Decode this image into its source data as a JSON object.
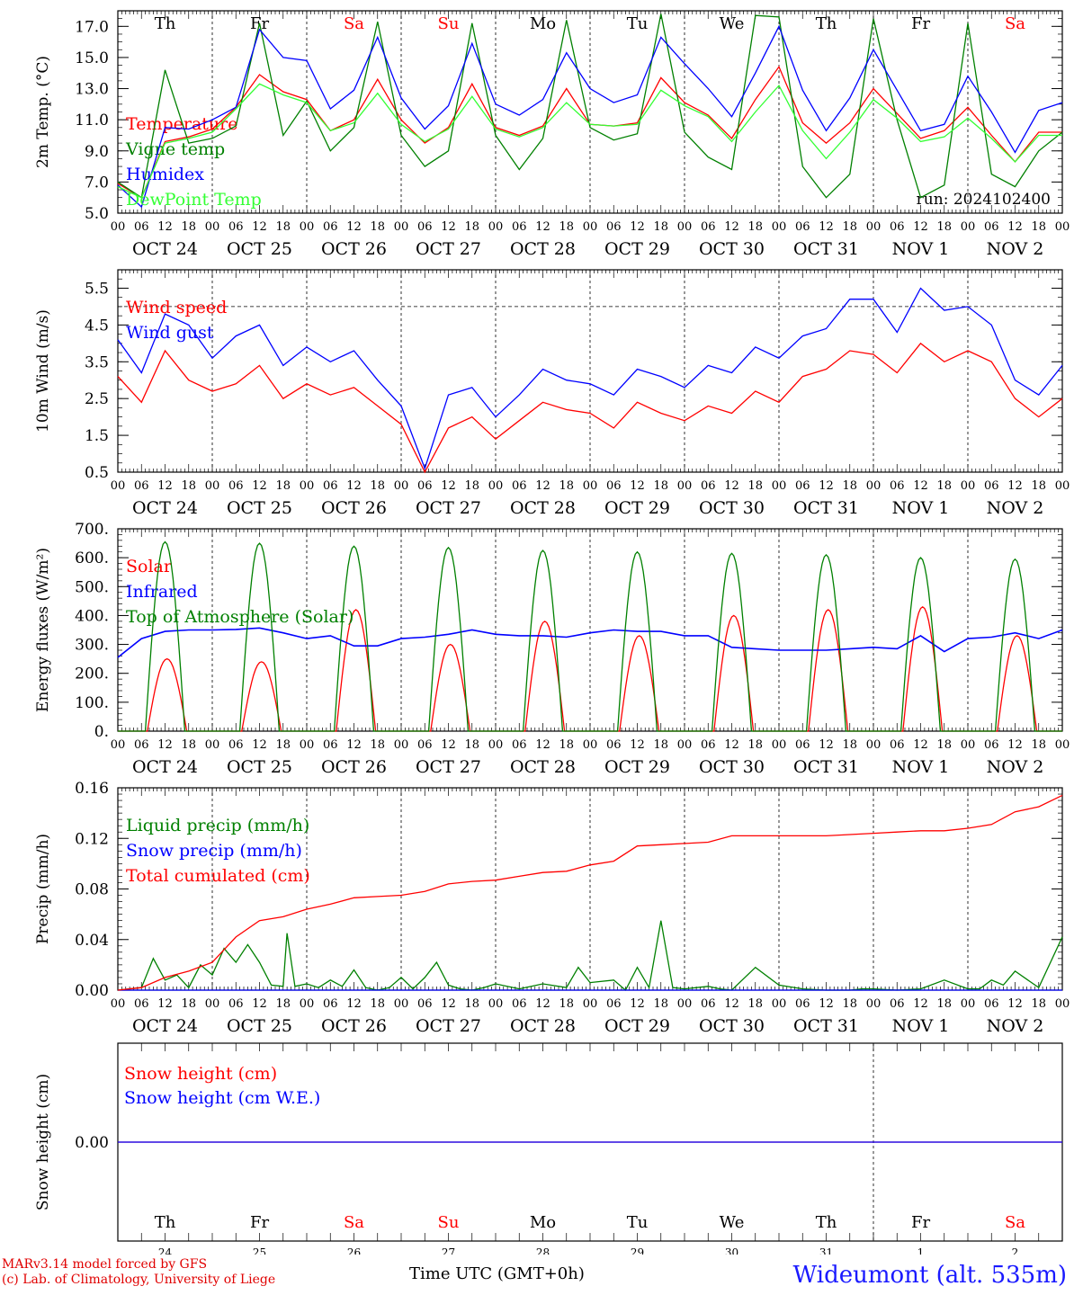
{
  "chart_data": [
    {
      "type": "line",
      "ylabel": "2m Temp. (°C)",
      "ylim": [
        5.0,
        18.0
      ],
      "yticks": [
        "5.0",
        "7.0",
        "9.0",
        "11.0",
        "13.0",
        "15.0",
        "17.0"
      ],
      "x_unit": "hours since OCT 24 00 UTC",
      "day_labels": [
        "Th",
        "Fr",
        "Sa",
        "Su",
        "Mo",
        "Tu",
        "We",
        "Th",
        "Fr",
        "Sa"
      ],
      "date_labels": [
        "OCT 24",
        "OCT 25",
        "OCT 26",
        "OCT 27",
        "OCT 28",
        "OCT 29",
        "OCT 30",
        "OCT 31",
        "NOV  1",
        "NOV  2"
      ],
      "hour_labels": [
        "00",
        "06",
        "12",
        "18"
      ],
      "annotation": "run: 2024102400",
      "series": [
        {
          "name": "Temperature",
          "color": "#ff0000",
          "x": [
            0,
            6,
            12,
            18,
            24,
            30,
            36,
            42,
            48,
            54,
            60,
            66,
            72,
            78,
            84,
            90,
            96,
            102,
            108,
            114,
            120,
            126,
            132,
            138,
            144,
            150,
            156,
            162,
            168,
            174,
            180,
            186,
            192,
            198,
            204,
            210,
            216,
            222,
            228,
            234,
            240
          ],
          "y": [
            6.9,
            6.0,
            9.6,
            9.9,
            10.4,
            11.8,
            13.9,
            12.8,
            12.3,
            10.3,
            11.0,
            13.6,
            11.0,
            9.5,
            10.5,
            13.3,
            10.5,
            10.0,
            10.6,
            13.0,
            10.7,
            10.6,
            10.8,
            13.7,
            12.1,
            11.3,
            9.8,
            12.3,
            14.4,
            10.8,
            9.5,
            10.8,
            13.0,
            11.4,
            9.8,
            10.3,
            11.8,
            10.0,
            8.3,
            10.2,
            10.2
          ]
        },
        {
          "name": "Vigne temp",
          "color": "#008000",
          "x": [
            0,
            6,
            12,
            18,
            24,
            30,
            36,
            42,
            48,
            54,
            60,
            66,
            72,
            78,
            84,
            90,
            96,
            102,
            108,
            114,
            120,
            126,
            132,
            138,
            144,
            150,
            156,
            162,
            168,
            174,
            180,
            186,
            192,
            198,
            204,
            210,
            216,
            222,
            228,
            234,
            240
          ],
          "y": [
            7.0,
            6.0,
            14.2,
            9.5,
            9.8,
            10.6,
            17.2,
            10.0,
            12.2,
            9.0,
            10.5,
            17.3,
            10.0,
            8.0,
            9.0,
            17.2,
            10.0,
            7.8,
            9.8,
            17.4,
            10.5,
            9.7,
            10.1,
            17.8,
            10.2,
            8.6,
            7.8,
            17.7,
            17.6,
            8.0,
            6.0,
            7.5,
            17.5,
            11.0,
            6.0,
            6.8,
            17.2,
            7.5,
            6.7,
            9.0,
            10.2
          ]
        },
        {
          "name": "Humidex",
          "color": "#0000ff",
          "x": [
            0,
            6,
            12,
            18,
            24,
            30,
            36,
            42,
            48,
            54,
            60,
            66,
            72,
            78,
            84,
            90,
            96,
            102,
            108,
            114,
            120,
            126,
            132,
            138,
            144,
            150,
            156,
            162,
            168,
            174,
            180,
            186,
            192,
            198,
            204,
            210,
            216,
            222,
            228,
            234,
            240
          ],
          "y": [
            6.8,
            5.4,
            10.5,
            10.4,
            11.0,
            11.8,
            16.8,
            15.0,
            14.8,
            11.7,
            12.9,
            16.3,
            12.4,
            10.4,
            11.9,
            15.9,
            12.0,
            11.3,
            12.3,
            15.3,
            13.0,
            12.1,
            12.6,
            16.3,
            14.6,
            13.0,
            11.2,
            14.0,
            17.0,
            12.9,
            10.3,
            12.4,
            15.5,
            12.9,
            10.3,
            10.7,
            13.8,
            11.5,
            8.9,
            11.6,
            12.1
          ]
        },
        {
          "name": "DewPoint Temp",
          "color": "#33ff33",
          "x": [
            0,
            6,
            12,
            18,
            24,
            30,
            36,
            42,
            48,
            54,
            60,
            66,
            72,
            78,
            84,
            90,
            96,
            102,
            108,
            114,
            120,
            126,
            132,
            138,
            144,
            150,
            156,
            162,
            168,
            174,
            180,
            186,
            192,
            198,
            204,
            210,
            216,
            222,
            228,
            234,
            240
          ],
          "y": [
            6.7,
            6.0,
            9.5,
            9.8,
            10.2,
            11.7,
            13.3,
            12.6,
            12.1,
            10.3,
            10.8,
            12.7,
            10.7,
            9.6,
            10.4,
            12.5,
            10.4,
            9.9,
            10.5,
            12.1,
            10.7,
            10.6,
            10.7,
            12.9,
            11.9,
            11.2,
            9.6,
            11.5,
            13.2,
            10.3,
            8.5,
            10.2,
            12.3,
            11.1,
            9.6,
            9.9,
            11.1,
            9.8,
            8.3,
            10.0,
            10.0
          ]
        }
      ]
    },
    {
      "type": "line",
      "ylabel": "10m Wind (m/s)",
      "ylim": [
        0.5,
        6.0
      ],
      "yticks": [
        "0.5",
        "1.5",
        "2.5",
        "3.5",
        "4.5",
        "5.5"
      ],
      "reference_line": 5.0,
      "date_labels": [
        "OCT 24",
        "OCT 25",
        "OCT 26",
        "OCT 27",
        "OCT 28",
        "OCT 29",
        "OCT 30",
        "OCT 31",
        "NOV  1",
        "NOV  2"
      ],
      "hour_labels": [
        "00",
        "06",
        "12",
        "18"
      ],
      "series": [
        {
          "name": "Wind speed",
          "color": "#ff0000",
          "x": [
            0,
            6,
            12,
            18,
            24,
            30,
            36,
            42,
            48,
            54,
            60,
            66,
            72,
            78,
            84,
            90,
            96,
            102,
            108,
            114,
            120,
            126,
            132,
            138,
            144,
            150,
            156,
            162,
            168,
            174,
            180,
            186,
            192,
            198,
            204,
            210,
            216,
            222,
            228,
            234,
            240
          ],
          "y": [
            3.1,
            2.4,
            3.8,
            3.0,
            2.7,
            2.9,
            3.4,
            2.5,
            2.9,
            2.6,
            2.8,
            2.3,
            1.8,
            0.5,
            1.7,
            2.0,
            1.4,
            1.9,
            2.4,
            2.2,
            2.1,
            1.7,
            2.4,
            2.1,
            1.9,
            2.3,
            2.1,
            2.7,
            2.4,
            3.1,
            3.3,
            3.8,
            3.7,
            3.2,
            4.0,
            3.5,
            3.8,
            3.5,
            2.5,
            2.0,
            2.5
          ]
        },
        {
          "name": "Wind gust",
          "color": "#0000ff",
          "x": [
            0,
            6,
            12,
            18,
            24,
            30,
            36,
            42,
            48,
            54,
            60,
            66,
            72,
            78,
            84,
            90,
            96,
            102,
            108,
            114,
            120,
            126,
            132,
            138,
            144,
            150,
            156,
            162,
            168,
            174,
            180,
            186,
            192,
            198,
            204,
            210,
            216,
            222,
            228,
            234,
            240
          ],
          "y": [
            4.1,
            3.2,
            4.8,
            4.5,
            3.6,
            4.2,
            4.5,
            3.4,
            3.9,
            3.5,
            3.8,
            3.0,
            2.3,
            0.6,
            2.6,
            2.8,
            2.0,
            2.6,
            3.3,
            3.0,
            2.9,
            2.6,
            3.3,
            3.1,
            2.8,
            3.4,
            3.2,
            3.9,
            3.6,
            4.2,
            4.4,
            5.2,
            5.2,
            4.3,
            5.5,
            4.9,
            5.0,
            4.5,
            3.0,
            2.6,
            3.4
          ]
        }
      ]
    },
    {
      "type": "line",
      "ylabel": "Energy fluxes (W/m²)",
      "ylim": [
        0,
        700
      ],
      "yticks": [
        "0.",
        "100.",
        "200.",
        "300.",
        "400.",
        "500.",
        "600.",
        "700."
      ],
      "date_labels": [
        "OCT 24",
        "OCT 25",
        "OCT 26",
        "OCT 27",
        "OCT 28",
        "OCT 29",
        "OCT 30",
        "OCT 31",
        "NOV  1",
        "NOV  2"
      ],
      "hour_labels": [
        "00",
        "06",
        "12",
        "18"
      ],
      "series": [
        {
          "name": "Solar",
          "color": "#ff0000",
          "daily_peak": [
            250,
            240,
            420,
            300,
            380,
            330,
            400,
            420,
            430,
            330
          ],
          "daily_peak_hour": 12.5,
          "daily_half_width": 5
        },
        {
          "name": "Infrared",
          "color": "#0000ff",
          "x": [
            0,
            6,
            12,
            18,
            24,
            30,
            36,
            42,
            48,
            54,
            60,
            66,
            72,
            78,
            84,
            90,
            96,
            102,
            108,
            114,
            120,
            126,
            132,
            138,
            144,
            150,
            156,
            162,
            168,
            174,
            180,
            186,
            192,
            198,
            204,
            210,
            216,
            222,
            228,
            234,
            240
          ],
          "y": [
            255,
            320,
            345,
            350,
            350,
            352,
            357,
            340,
            320,
            330,
            295,
            295,
            320,
            325,
            335,
            350,
            335,
            330,
            330,
            325,
            340,
            350,
            345,
            345,
            330,
            330,
            290,
            285,
            280,
            280,
            280,
            285,
            290,
            285,
            330,
            275,
            320,
            325,
            340,
            320,
            350
          ]
        },
        {
          "name": "Top of Atmosphere (Solar)",
          "color": "#008000",
          "daily_peak": [
            655,
            650,
            640,
            635,
            625,
            620,
            615,
            610,
            600,
            595
          ],
          "daily_peak_hour": 12,
          "daily_half_width": 5
        }
      ]
    },
    {
      "type": "line",
      "ylabel": "Precip (mm/h)",
      "ylim": [
        0.0,
        0.16
      ],
      "yticks": [
        "0.00",
        "0.04",
        "0.08",
        "0.12",
        "0.16"
      ],
      "date_labels": [
        "OCT 24",
        "OCT 25",
        "OCT 26",
        "OCT 27",
        "OCT 28",
        "OCT 29",
        "OCT 30",
        "OCT 31",
        "NOV  1",
        "NOV  2"
      ],
      "hour_labels": [
        "00",
        "06",
        "12",
        "18"
      ],
      "series": [
        {
          "name": "Liquid precip (mm/h)",
          "color": "#008000",
          "x": [
            0,
            6,
            9,
            12,
            15,
            18,
            21,
            24,
            27,
            30,
            33,
            36,
            39,
            42,
            43,
            45,
            48,
            51,
            54,
            57,
            60,
            63,
            66,
            69,
            72,
            75,
            78,
            81,
            84,
            87,
            90,
            93,
            96,
            102,
            108,
            114,
            117,
            120,
            126,
            129,
            132,
            135,
            138,
            141,
            144,
            150,
            153,
            156,
            162,
            168,
            174,
            180,
            186,
            189,
            192,
            198,
            204,
            210,
            216,
            219,
            222,
            225,
            228,
            234,
            240
          ],
          "y": [
            0,
            0.002,
            0.025,
            0.008,
            0.012,
            0.002,
            0.02,
            0.012,
            0.033,
            0.022,
            0.036,
            0.022,
            0.004,
            0.003,
            0.045,
            0.003,
            0.005,
            0.002,
            0.008,
            0.003,
            0.016,
            0.002,
            0,
            0.002,
            0.01,
            0.001,
            0.01,
            0.022,
            0.004,
            0.001,
            0,
            0.002,
            0.005,
            0.001,
            0.005,
            0.002,
            0.018,
            0.006,
            0.008,
            0,
            0.018,
            0.002,
            0.055,
            0.002,
            0.001,
            0.003,
            0.001,
            0,
            0.018,
            0.004,
            0.001,
            0,
            0,
            0.001,
            0.001,
            0,
            0.001,
            0.008,
            0.001,
            0.001,
            0.008,
            0.004,
            0.015,
            0.002,
            0.042
          ]
        },
        {
          "name": "Snow precip (mm/h)",
          "color": "#0000ff",
          "x": [
            0,
            240
          ],
          "y": [
            0,
            0
          ]
        },
        {
          "name": "Total cumulated (cm)",
          "color": "#ff0000",
          "x": [
            0,
            6,
            12,
            18,
            24,
            30,
            36,
            42,
            48,
            54,
            60,
            66,
            72,
            78,
            84,
            90,
            96,
            102,
            108,
            114,
            120,
            126,
            132,
            138,
            144,
            150,
            156,
            162,
            168,
            174,
            180,
            186,
            192,
            198,
            204,
            210,
            216,
            222,
            228,
            234,
            240
          ],
          "y": [
            0,
            0.002,
            0.01,
            0.015,
            0.022,
            0.042,
            0.055,
            0.058,
            0.064,
            0.068,
            0.073,
            0.074,
            0.075,
            0.078,
            0.084,
            0.086,
            0.087,
            0.09,
            0.093,
            0.094,
            0.099,
            0.102,
            0.114,
            0.115,
            0.116,
            0.117,
            0.122,
            0.122,
            0.122,
            0.122,
            0.122,
            0.123,
            0.124,
            0.125,
            0.126,
            0.126,
            0.128,
            0.131,
            0.141,
            0.145,
            0.154
          ]
        }
      ]
    },
    {
      "type": "line",
      "ylabel": "Snow height (cm)",
      "ylim": [
        -0.01,
        0.01
      ],
      "yticks": [
        "0.00"
      ],
      "day_labels": [
        "Th",
        "Fr",
        "Sa",
        "Su",
        "Mo",
        "Tu",
        "We",
        "Th",
        "Fr",
        "Sa"
      ],
      "date_numbers": [
        "24",
        "25",
        "26",
        "27",
        "28",
        "29",
        "30",
        "31",
        "1",
        "2"
      ],
      "series": [
        {
          "name": "Snow height (cm)",
          "color": "#ff0000",
          "x": [
            0,
            240
          ],
          "y": [
            0,
            0
          ]
        },
        {
          "name": "Snow height (cm W.E.)",
          "color": "#0000ff",
          "x": [
            0,
            240
          ],
          "y": [
            0,
            0
          ]
        }
      ]
    }
  ],
  "weekend_color": "#ff0000",
  "footer": {
    "credit_line1": "MARv3.14 model forced by GFS",
    "credit_line2": "(c) Lab. of Climatology, University of Liege",
    "xlabel": "Time UTC (GMT+0h)",
    "station": "Wideumont (alt. 535m)"
  }
}
